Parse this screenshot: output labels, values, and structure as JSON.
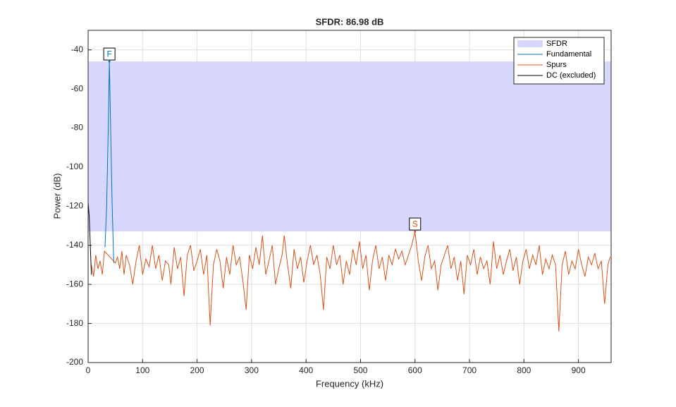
{
  "chart_data": {
    "type": "line",
    "title": "SFDR:  86.98 dB",
    "xlabel": "Frequency (kHz)",
    "ylabel": "Power (dB)",
    "xlim": [
      0,
      960
    ],
    "ylim": [
      -200,
      -30
    ],
    "xticks": [
      0,
      100,
      200,
      300,
      400,
      500,
      600,
      700,
      800,
      900
    ],
    "yticks": [
      -200,
      -180,
      -160,
      -140,
      -120,
      -100,
      -80,
      -60,
      -40
    ],
    "grid": true,
    "legend": "northeast",
    "sfdr": {
      "name": "SFDR",
      "color": "#d6d6ff",
      "band": [
        -132.9,
        -45.92
      ]
    },
    "series": [
      {
        "name": "Fundamental",
        "color": "#0072bd",
        "x": [
          31,
          34,
          37,
          39,
          41,
          44,
          47
        ],
        "values": [
          -141,
          -120,
          -80,
          -45.92,
          -75,
          -118,
          -149
        ]
      },
      {
        "name": "Spurs",
        "color": "#d95319",
        "x": [
          6,
          10,
          14,
          18,
          22,
          26,
          30,
          50,
          54,
          58,
          62,
          66,
          70,
          76,
          82,
          88,
          94,
          100,
          106,
          112,
          118,
          124,
          130,
          136,
          142,
          148,
          152,
          158,
          164,
          170,
          176,
          182,
          188,
          194,
          200,
          206,
          212,
          218,
          224,
          230,
          236,
          242,
          248,
          254,
          260,
          266,
          272,
          278,
          284,
          290,
          296,
          302,
          308,
          314,
          320,
          326,
          332,
          338,
          344,
          350,
          356,
          360,
          366,
          372,
          378,
          384,
          390,
          396,
          402,
          408,
          414,
          420,
          426,
          432,
          438,
          444,
          450,
          456,
          462,
          468,
          474,
          480,
          486,
          492,
          498,
          504,
          510,
          516,
          522,
          528,
          534,
          540,
          546,
          552,
          558,
          564,
          570,
          576,
          582,
          588,
          594,
          600,
          606,
          612,
          618,
          624,
          630,
          636,
          642,
          648,
          654,
          660,
          666,
          672,
          678,
          684,
          690,
          696,
          702,
          708,
          714,
          720,
          726,
          732,
          738,
          744,
          750,
          756,
          762,
          768,
          774,
          780,
          786,
          792,
          798,
          804,
          810,
          816,
          822,
          828,
          834,
          840,
          846,
          852,
          858,
          864,
          870,
          876,
          882,
          888,
          894,
          900,
          906,
          912,
          918,
          924,
          930,
          936,
          942,
          948,
          954,
          958
        ],
        "values": [
          -150,
          -156,
          -145,
          -152,
          -148,
          -155,
          -143,
          -149,
          -146,
          -152,
          -143,
          -155,
          -145,
          -150,
          -160,
          -148,
          -140,
          -155,
          -147,
          -151,
          -140,
          -152,
          -145,
          -158,
          -148,
          -150,
          -160,
          -141,
          -152,
          -146,
          -166,
          -145,
          -140,
          -153,
          -148,
          -142,
          -155,
          -145,
          -181,
          -150,
          -142,
          -148,
          -162,
          -146,
          -155,
          -140,
          -150,
          -146,
          -158,
          -173,
          -145,
          -152,
          -141,
          -150,
          -135,
          -155,
          -148,
          -140,
          -160,
          -152,
          -145,
          -135,
          -150,
          -162,
          -142,
          -152,
          -146,
          -159,
          -148,
          -140,
          -150,
          -145,
          -155,
          -173,
          -146,
          -152,
          -140,
          -150,
          -145,
          -160,
          -148,
          -155,
          -142,
          -150,
          -138,
          -152,
          -145,
          -163,
          -148,
          -140,
          -152,
          -146,
          -158,
          -145,
          -150,
          -142,
          -147,
          -143,
          -150,
          -145,
          -140,
          -132.9,
          -148,
          -158,
          -146,
          -140,
          -152,
          -148,
          -163,
          -150,
          -145,
          -140,
          -152,
          -146,
          -158,
          -148,
          -165,
          -145,
          -150,
          -142,
          -155,
          -146,
          -152,
          -148,
          -160,
          -138,
          -152,
          -145,
          -155,
          -148,
          -142,
          -153,
          -146,
          -160,
          -148,
          -142,
          -152,
          -145,
          -150,
          -140,
          -155,
          -147,
          -152,
          -145,
          -150,
          -184,
          -150,
          -143,
          -155,
          -148,
          -152,
          -142,
          -150,
          -156,
          -146,
          -150,
          -144,
          -152,
          -148,
          -170,
          -150,
          -146
        ]
      },
      {
        "name": "DC (excluded)",
        "color": "#000000",
        "x": [
          0,
          2,
          4,
          6
        ],
        "values": [
          -118,
          -125,
          -140,
          -155
        ]
      }
    ],
    "markers": [
      {
        "label": "F",
        "x": 39,
        "y": -45.92,
        "color": "#0072bd"
      },
      {
        "label": "S",
        "x": 600,
        "y": -132.9,
        "color": "#d95319"
      }
    ]
  }
}
